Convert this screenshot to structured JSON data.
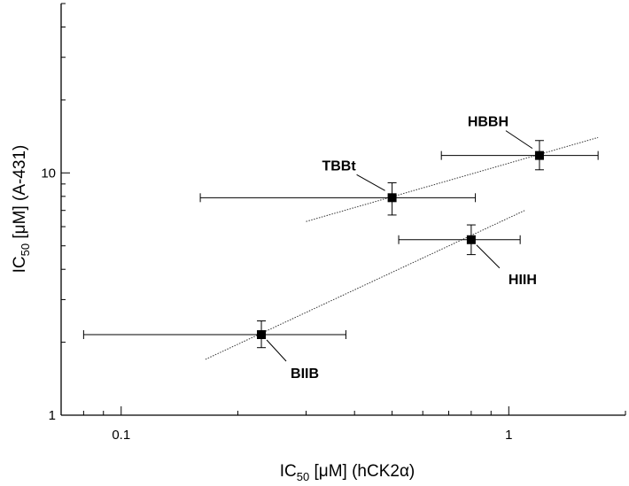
{
  "chart_data": {
    "type": "scatter",
    "xscale": "log",
    "yscale": "log",
    "xlim": [
      0.07,
      2
    ],
    "ylim": [
      1,
      50
    ],
    "grid": false,
    "xlabel": {
      "main": "IC",
      "sub": "50",
      "rest": " [μM] (hCK2α)"
    },
    "ylabel": {
      "main": "IC",
      "sub": "50",
      "rest": " [μM] (A-431)"
    },
    "xticks": [
      {
        "value": 0.1,
        "label": "0.1"
      },
      {
        "value": 1,
        "label": "1"
      }
    ],
    "yticks": [
      {
        "value": 1,
        "label": "1"
      },
      {
        "value": 10,
        "label": "10"
      }
    ],
    "points": [
      {
        "label": "HBBH",
        "x": 1.2,
        "y": 11.8,
        "xerr": [
          0.67,
          1.7
        ],
        "yerr": [
          10.3,
          13.6
        ]
      },
      {
        "label": "TBBt",
        "x": 0.5,
        "y": 7.9,
        "xerr": [
          0.16,
          0.82
        ],
        "yerr": [
          6.7,
          9.1
        ]
      },
      {
        "label": "HIIH",
        "x": 0.8,
        "y": 5.3,
        "xerr": [
          0.52,
          1.07
        ],
        "yerr": [
          4.6,
          6.1
        ]
      },
      {
        "label": "BIIB",
        "x": 0.23,
        "y": 2.15,
        "xerr": [
          0.08,
          0.38
        ],
        "yerr": [
          1.9,
          2.45
        ]
      }
    ],
    "fit_lines": [
      {
        "x": [
          0.3,
          1.7
        ],
        "y": [
          6.3,
          14.0
        ]
      },
      {
        "x": [
          0.165,
          1.1
        ],
        "y": [
          1.7,
          7.0
        ]
      }
    ]
  }
}
